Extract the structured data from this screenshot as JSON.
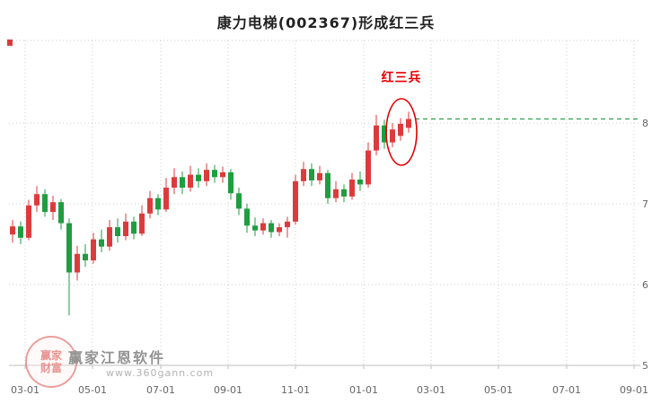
{
  "title": "康力电梯(002367)形成红三兵",
  "annotation": {
    "label": "红三兵",
    "color": "#e60000"
  },
  "watermark": {
    "brand": "赢家江恩软件",
    "url": "www.360gann.com",
    "logo_top": "赢家",
    "logo_bottom": "财富"
  },
  "chart_data": {
    "type": "candlestick",
    "title": "康力电梯(002367)形成红三兵",
    "x_tick_labels": [
      "03-01",
      "05-01",
      "07-01",
      "09-01",
      "11-01",
      "01-01",
      "03-01",
      "05-01",
      "07-01",
      "09-01"
    ],
    "y_tick_labels": [
      "8",
      "7",
      "6",
      "5"
    ],
    "ylim": [
      5,
      9.0
    ],
    "grid": true,
    "legend": "none",
    "up_color": "#dd3b3b",
    "down_color": "#1f9d40",
    "grid_color": "#cccccc",
    "axis_line_color": "#bfbfbf",
    "axis_text_color": "#666666",
    "dashed_level": 8.05,
    "dashed_line_color": "#2e9e4f",
    "annotation_ellipse_candles": [
      47,
      49
    ],
    "candles": [
      [
        6.62,
        6.8,
        6.52,
        6.72
      ],
      [
        6.72,
        6.78,
        6.5,
        6.58
      ],
      [
        6.58,
        7.05,
        6.55,
        6.98
      ],
      [
        6.98,
        7.22,
        6.9,
        7.12
      ],
      [
        7.12,
        7.18,
        6.84,
        6.9
      ],
      [
        6.9,
        7.1,
        6.8,
        7.02
      ],
      [
        7.02,
        7.06,
        6.68,
        6.76
      ],
      [
        6.76,
        6.82,
        5.62,
        6.15
      ],
      [
        6.15,
        6.48,
        6.05,
        6.38
      ],
      [
        6.38,
        6.5,
        6.22,
        6.3
      ],
      [
        6.3,
        6.64,
        6.26,
        6.56
      ],
      [
        6.56,
        6.68,
        6.4,
        6.47
      ],
      [
        6.47,
        6.8,
        6.42,
        6.71
      ],
      [
        6.71,
        6.82,
        6.52,
        6.6
      ],
      [
        6.6,
        6.88,
        6.55,
        6.78
      ],
      [
        6.78,
        6.84,
        6.56,
        6.63
      ],
      [
        6.63,
        6.98,
        6.6,
        6.88
      ],
      [
        6.88,
        7.16,
        6.82,
        7.07
      ],
      [
        7.07,
        7.12,
        6.86,
        6.93
      ],
      [
        6.93,
        7.32,
        6.9,
        7.2
      ],
      [
        7.2,
        7.44,
        7.12,
        7.33
      ],
      [
        7.33,
        7.4,
        7.12,
        7.2
      ],
      [
        7.2,
        7.47,
        7.15,
        7.36
      ],
      [
        7.36,
        7.44,
        7.2,
        7.28
      ],
      [
        7.28,
        7.5,
        7.22,
        7.42
      ],
      [
        7.42,
        7.48,
        7.26,
        7.33
      ],
      [
        7.33,
        7.46,
        7.26,
        7.39
      ],
      [
        7.39,
        7.43,
        7.05,
        7.13
      ],
      [
        7.13,
        7.2,
        6.86,
        6.94
      ],
      [
        6.94,
        7.0,
        6.64,
        6.73
      ],
      [
        6.73,
        6.83,
        6.6,
        6.67
      ],
      [
        6.67,
        6.82,
        6.62,
        6.76
      ],
      [
        6.76,
        6.8,
        6.58,
        6.65
      ],
      [
        6.65,
        6.76,
        6.6,
        6.71
      ],
      [
        6.71,
        6.84,
        6.58,
        6.78
      ],
      [
        6.78,
        7.36,
        6.74,
        7.28
      ],
      [
        7.28,
        7.52,
        7.22,
        7.43
      ],
      [
        7.43,
        7.5,
        7.22,
        7.29
      ],
      [
        7.29,
        7.47,
        7.24,
        7.38
      ],
      [
        7.38,
        7.42,
        7.0,
        7.07
      ],
      [
        7.07,
        7.28,
        7.02,
        7.18
      ],
      [
        7.18,
        7.24,
        7.02,
        7.09
      ],
      [
        7.09,
        7.38,
        7.05,
        7.3
      ],
      [
        7.3,
        7.4,
        7.16,
        7.24
      ],
      [
        7.24,
        7.76,
        7.2,
        7.66
      ],
      [
        7.66,
        8.1,
        7.6,
        7.97
      ],
      [
        7.97,
        8.04,
        7.68,
        7.76
      ],
      [
        7.76,
        8.0,
        7.7,
        7.92
      ],
      [
        7.84,
        8.06,
        7.78,
        7.99
      ],
      [
        7.94,
        8.14,
        7.88,
        8.05
      ]
    ]
  }
}
